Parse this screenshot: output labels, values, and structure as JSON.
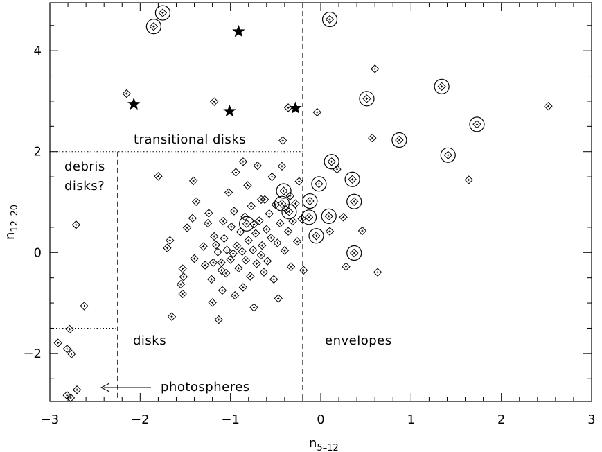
{
  "chart_data": {
    "type": "scatter",
    "xlabel": {
      "main": "n",
      "sub": "5–12"
    },
    "ylabel": {
      "main": "n",
      "sub": "12–20"
    },
    "xlim": [
      -3,
      3
    ],
    "ylim": [
      -2.95,
      4.95
    ],
    "x_ticks": [
      "−3",
      "−2",
      "−1",
      "0",
      "1",
      "2",
      "3"
    ],
    "x_tick_values": [
      -3,
      -2,
      -1,
      0,
      1,
      2,
      3
    ],
    "y_ticks": [
      "−2",
      "0",
      "2",
      "4"
    ],
    "y_tick_values": [
      -2,
      0,
      2,
      4
    ],
    "x_minor_step": 0.2,
    "y_minor_step": 0.5,
    "grid": false,
    "region_labels": {
      "transitional": "transitional disks",
      "debris_1": "debris",
      "debris_2": "disks?",
      "disks": "disks",
      "envelopes": "envelopes",
      "photospheres": "photospheres"
    },
    "boundaries": {
      "envelope_x": -0.2,
      "disk_x": -2.25,
      "transitional_y": 2.0,
      "photosphere_y": -1.5
    },
    "series": [
      {
        "marker": "diamond",
        "points": [
          [
            -2.91,
            -1.79
          ],
          [
            -2.81,
            -1.91
          ],
          [
            -2.76,
            -2.01
          ],
          [
            -2.78,
            -1.52
          ],
          [
            -2.77,
            -2.88
          ],
          [
            -2.81,
            -2.83
          ],
          [
            -2.7,
            -2.72
          ],
          [
            -2.62,
            -1.06
          ],
          [
            -2.71,
            0.55
          ],
          [
            -2.15,
            3.15
          ],
          [
            -1.8,
            1.51
          ],
          [
            -1.7,
            0.09
          ],
          [
            -1.67,
            0.24
          ],
          [
            -1.65,
            -1.27
          ],
          [
            -1.53,
            -0.82
          ],
          [
            -1.55,
            -0.63
          ],
          [
            -1.52,
            -0.48
          ],
          [
            -1.53,
            -0.32
          ],
          [
            -1.48,
            0.49
          ],
          [
            -1.4,
            -0.12
          ],
          [
            -1.42,
            0.68
          ],
          [
            -1.38,
            1.01
          ],
          [
            -1.41,
            1.42
          ],
          [
            -1.3,
            0.12
          ],
          [
            -1.28,
            -0.25
          ],
          [
            -1.25,
            0.58
          ],
          [
            -1.24,
            0.78
          ],
          [
            -1.21,
            -0.53
          ],
          [
            -1.2,
            -0.99
          ],
          [
            -1.19,
            -0.2
          ],
          [
            -1.18,
            0.32
          ],
          [
            -1.16,
            0.15
          ],
          [
            -1.14,
            0.01
          ],
          [
            -1.13,
            -1.33
          ],
          [
            -1.1,
            -0.35
          ],
          [
            -1.09,
            -0.75
          ],
          [
            -1.08,
            0.62
          ],
          [
            -1.07,
            0.28
          ],
          [
            -1.05,
            -0.41
          ],
          [
            -1.04,
            0.05
          ],
          [
            -1.02,
            1.19
          ],
          [
            -1.0,
            -0.14
          ],
          [
            -0.99,
            0.51
          ],
          [
            -0.97,
            -0.02
          ],
          [
            -0.96,
            0.82
          ],
          [
            -0.95,
            -0.85
          ],
          [
            -0.93,
            0.13
          ],
          [
            -0.91,
            -0.31
          ],
          [
            -0.89,
            0.41
          ],
          [
            -0.87,
            0.02
          ],
          [
            -0.86,
            -0.69
          ],
          [
            -0.84,
            0.71
          ],
          [
            -0.83,
            -0.15
          ],
          [
            -0.81,
            1.33
          ],
          [
            -0.8,
            0.24
          ],
          [
            -0.78,
            -0.47
          ],
          [
            -0.77,
            0.92
          ],
          [
            -0.75,
            0.05
          ],
          [
            -0.74,
            -1.09
          ],
          [
            -0.72,
            0.38
          ],
          [
            -0.71,
            -0.22
          ],
          [
            -0.7,
            1.72
          ],
          [
            -0.68,
            0.63
          ],
          [
            -0.66,
            -0.05
          ],
          [
            -0.65,
            0.14
          ],
          [
            -0.63,
            -0.39
          ],
          [
            -0.62,
            1.05
          ],
          [
            -0.6,
            0.46
          ],
          [
            -0.59,
            -0.17
          ],
          [
            -0.57,
            0.77
          ],
          [
            -0.55,
            0.29
          ],
          [
            -0.54,
            1.5
          ],
          [
            -0.52,
            -0.53
          ],
          [
            -0.5,
            0.95
          ],
          [
            -0.48,
            0.19
          ],
          [
            -0.47,
            -0.91
          ],
          [
            -0.45,
            0.58
          ],
          [
            -0.43,
            1.71
          ],
          [
            -0.42,
            2.22
          ],
          [
            -0.4,
            0.04
          ],
          [
            -0.38,
            0.85
          ],
          [
            -0.36,
            0.42
          ],
          [
            -0.34,
            1.12
          ],
          [
            -0.33,
            -0.28
          ],
          [
            -0.31,
            0.62
          ],
          [
            -0.28,
            0.97
          ],
          [
            -0.26,
            0.22
          ],
          [
            -0.24,
            1.41
          ],
          [
            -0.21,
            0.67
          ],
          [
            -0.19,
            -0.35
          ],
          [
            -0.36,
            2.87
          ],
          [
            -1.18,
            2.99
          ],
          [
            -0.94,
            1.59
          ],
          [
            -0.86,
            1.8
          ],
          [
            -0.74,
            0.56
          ],
          [
            -0.66,
            1.05
          ],
          [
            -1.1,
            -0.2
          ],
          [
            -0.04,
            2.78
          ],
          [
            0.1,
            0.42
          ],
          [
            0.18,
            1.65
          ],
          [
            0.25,
            0.7
          ],
          [
            0.28,
            -0.28
          ],
          [
            0.46,
            0.43
          ],
          [
            0.57,
            2.27
          ],
          [
            0.6,
            3.64
          ],
          [
            0.63,
            -0.39
          ],
          [
            1.64,
            1.44
          ],
          [
            2.52,
            2.9
          ]
        ]
      },
      {
        "marker": "circled-diamond",
        "points": [
          [
            -1.75,
            4.75
          ],
          [
            -1.85,
            4.48
          ],
          [
            0.1,
            4.62
          ],
          [
            1.34,
            3.29
          ],
          [
            0.51,
            3.05
          ],
          [
            0.87,
            2.23
          ],
          [
            1.73,
            2.54
          ],
          [
            1.41,
            1.93
          ],
          [
            0.12,
            1.8
          ],
          [
            0.35,
            1.45
          ],
          [
            0.37,
            1.01
          ],
          [
            -0.02,
            1.36
          ],
          [
            -0.41,
            1.22
          ],
          [
            -0.12,
            1.02
          ],
          [
            -0.43,
            0.97
          ],
          [
            -0.35,
            0.81
          ],
          [
            -0.13,
            0.7
          ],
          [
            0.09,
            0.72
          ],
          [
            -0.05,
            0.33
          ],
          [
            -0.82,
            0.57
          ],
          [
            0.37,
            -0.01
          ]
        ]
      },
      {
        "marker": "star",
        "points": [
          [
            -0.91,
            4.38
          ],
          [
            -2.07,
            2.94
          ],
          [
            -1.01,
            2.8
          ],
          [
            -0.28,
            2.86
          ]
        ]
      }
    ]
  }
}
